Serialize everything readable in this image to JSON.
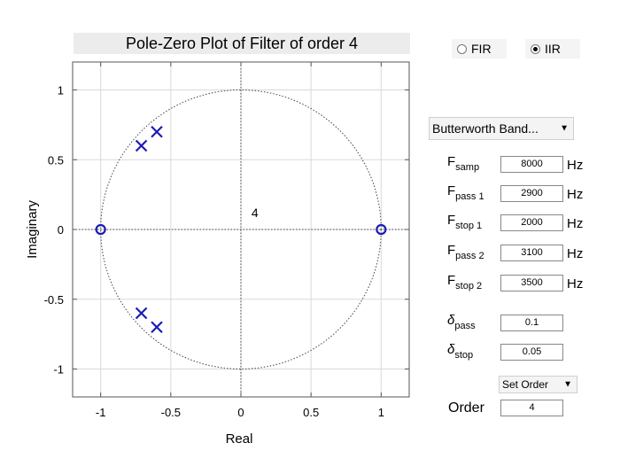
{
  "window": {
    "title": "Pole-Zero Plot of Filter of order 4"
  },
  "filter_family": {
    "fir_label": "FIR",
    "iir_label": "IIR",
    "selected": "IIR"
  },
  "filter_type": {
    "selected": "Butterworth Band..."
  },
  "params": [
    {
      "main": "F",
      "sub": "samp",
      "value": "8000",
      "unit": "Hz",
      "greek": false
    },
    {
      "main": "F",
      "sub": "pass 1",
      "value": "2900",
      "unit": "Hz",
      "greek": false
    },
    {
      "main": "F",
      "sub": "stop 1",
      "value": "2000",
      "unit": "Hz",
      "greek": false
    },
    {
      "main": "F",
      "sub": "pass 2",
      "value": "3100",
      "unit": "Hz",
      "greek": false
    },
    {
      "main": "F",
      "sub": "stop 2",
      "value": "3500",
      "unit": "Hz",
      "greek": false
    },
    {
      "main": "δ",
      "sub": "pass",
      "value": "0.1",
      "unit": "",
      "greek": true
    },
    {
      "main": "δ",
      "sub": "stop",
      "value": "0.05",
      "unit": "",
      "greek": true
    }
  ],
  "order_mode": {
    "selected": "Set Order"
  },
  "order": {
    "label": "Order",
    "value": "4"
  },
  "chart_data": {
    "type": "scatter",
    "title": "Pole-Zero Plot of Filter of order 4",
    "xlabel": "Real",
    "ylabel": "Imaginary",
    "xlim": [
      -1.2,
      1.2
    ],
    "ylim": [
      -1.2,
      1.2
    ],
    "x_ticks": [
      -1,
      -0.5,
      0,
      0.5,
      1
    ],
    "x_tick_labels": [
      "-1",
      "-0.5",
      "0",
      "0.5",
      "1"
    ],
    "y_ticks": [
      1,
      0.5,
      0,
      -0.5,
      -1
    ],
    "y_tick_labels": [
      "1",
      "0.5",
      "0",
      "-0.5",
      "-1"
    ],
    "grid": true,
    "unit_circle": true,
    "poles": [
      {
        "re": -0.6,
        "im": 0.7
      },
      {
        "re": -0.71,
        "im": 0.6
      },
      {
        "re": -0.71,
        "im": -0.6
      },
      {
        "re": -0.6,
        "im": -0.7
      }
    ],
    "zeros": [
      {
        "re": -1,
        "im": 0
      },
      {
        "re": 1,
        "im": 0
      }
    ],
    "annotation": {
      "text": "4",
      "re": 0.1,
      "im": 0.09
    },
    "colors": {
      "markers": "#1c1cb4",
      "grid": "#d9d9d9",
      "axis": "#555555"
    }
  }
}
